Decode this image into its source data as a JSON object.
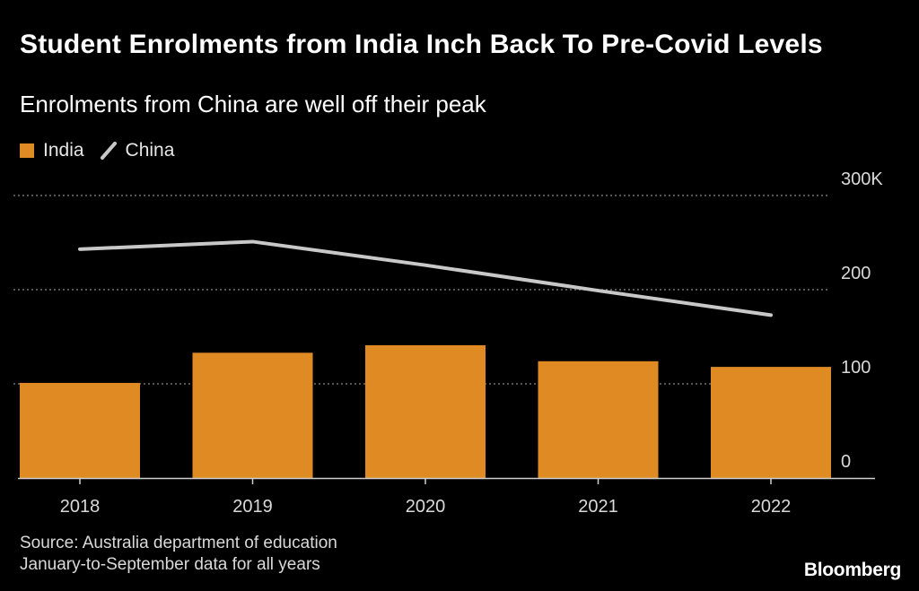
{
  "title": "Student Enrolments from India Inch Back To Pre-Covid Levels",
  "subtitle": "Enrolments from China are well off their peak",
  "legend": {
    "india": "India",
    "china": "China"
  },
  "colors": {
    "background": "#000000",
    "india_bar": "#e08a23",
    "china_line": "#c8c8c8",
    "grid": "#8a8a8a",
    "axis": "#cfcfcf"
  },
  "source": "Source: Australia department of education",
  "note": "January-to-September data for all years",
  "brand": "Bloomberg",
  "chart_data": {
    "type": "bar",
    "title": "Student Enrolments from India Inch Back To Pre-Covid Levels",
    "subtitle": "Enrolments from China are well off their peak",
    "categories": [
      "2018",
      "2019",
      "2020",
      "2021",
      "2022"
    ],
    "series": [
      {
        "name": "India",
        "type": "bar",
        "values": [
          101,
          133,
          141,
          124,
          118
        ]
      },
      {
        "name": "China",
        "type": "line",
        "values": [
          243,
          251,
          226,
          199,
          173
        ]
      }
    ],
    "y_ticks": [
      {
        "value": 300,
        "label": "300K"
      },
      {
        "value": 200,
        "label": "200"
      },
      {
        "value": 100,
        "label": "100"
      },
      {
        "value": 0,
        "label": "0"
      }
    ],
    "ylim": [
      0,
      300
    ],
    "xlabel": "",
    "ylabel": "",
    "grid": true,
    "legend_position": "top-left"
  }
}
